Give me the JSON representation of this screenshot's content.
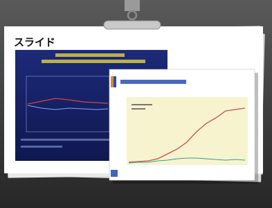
{
  "header": {
    "title": "スライド"
  }
}
